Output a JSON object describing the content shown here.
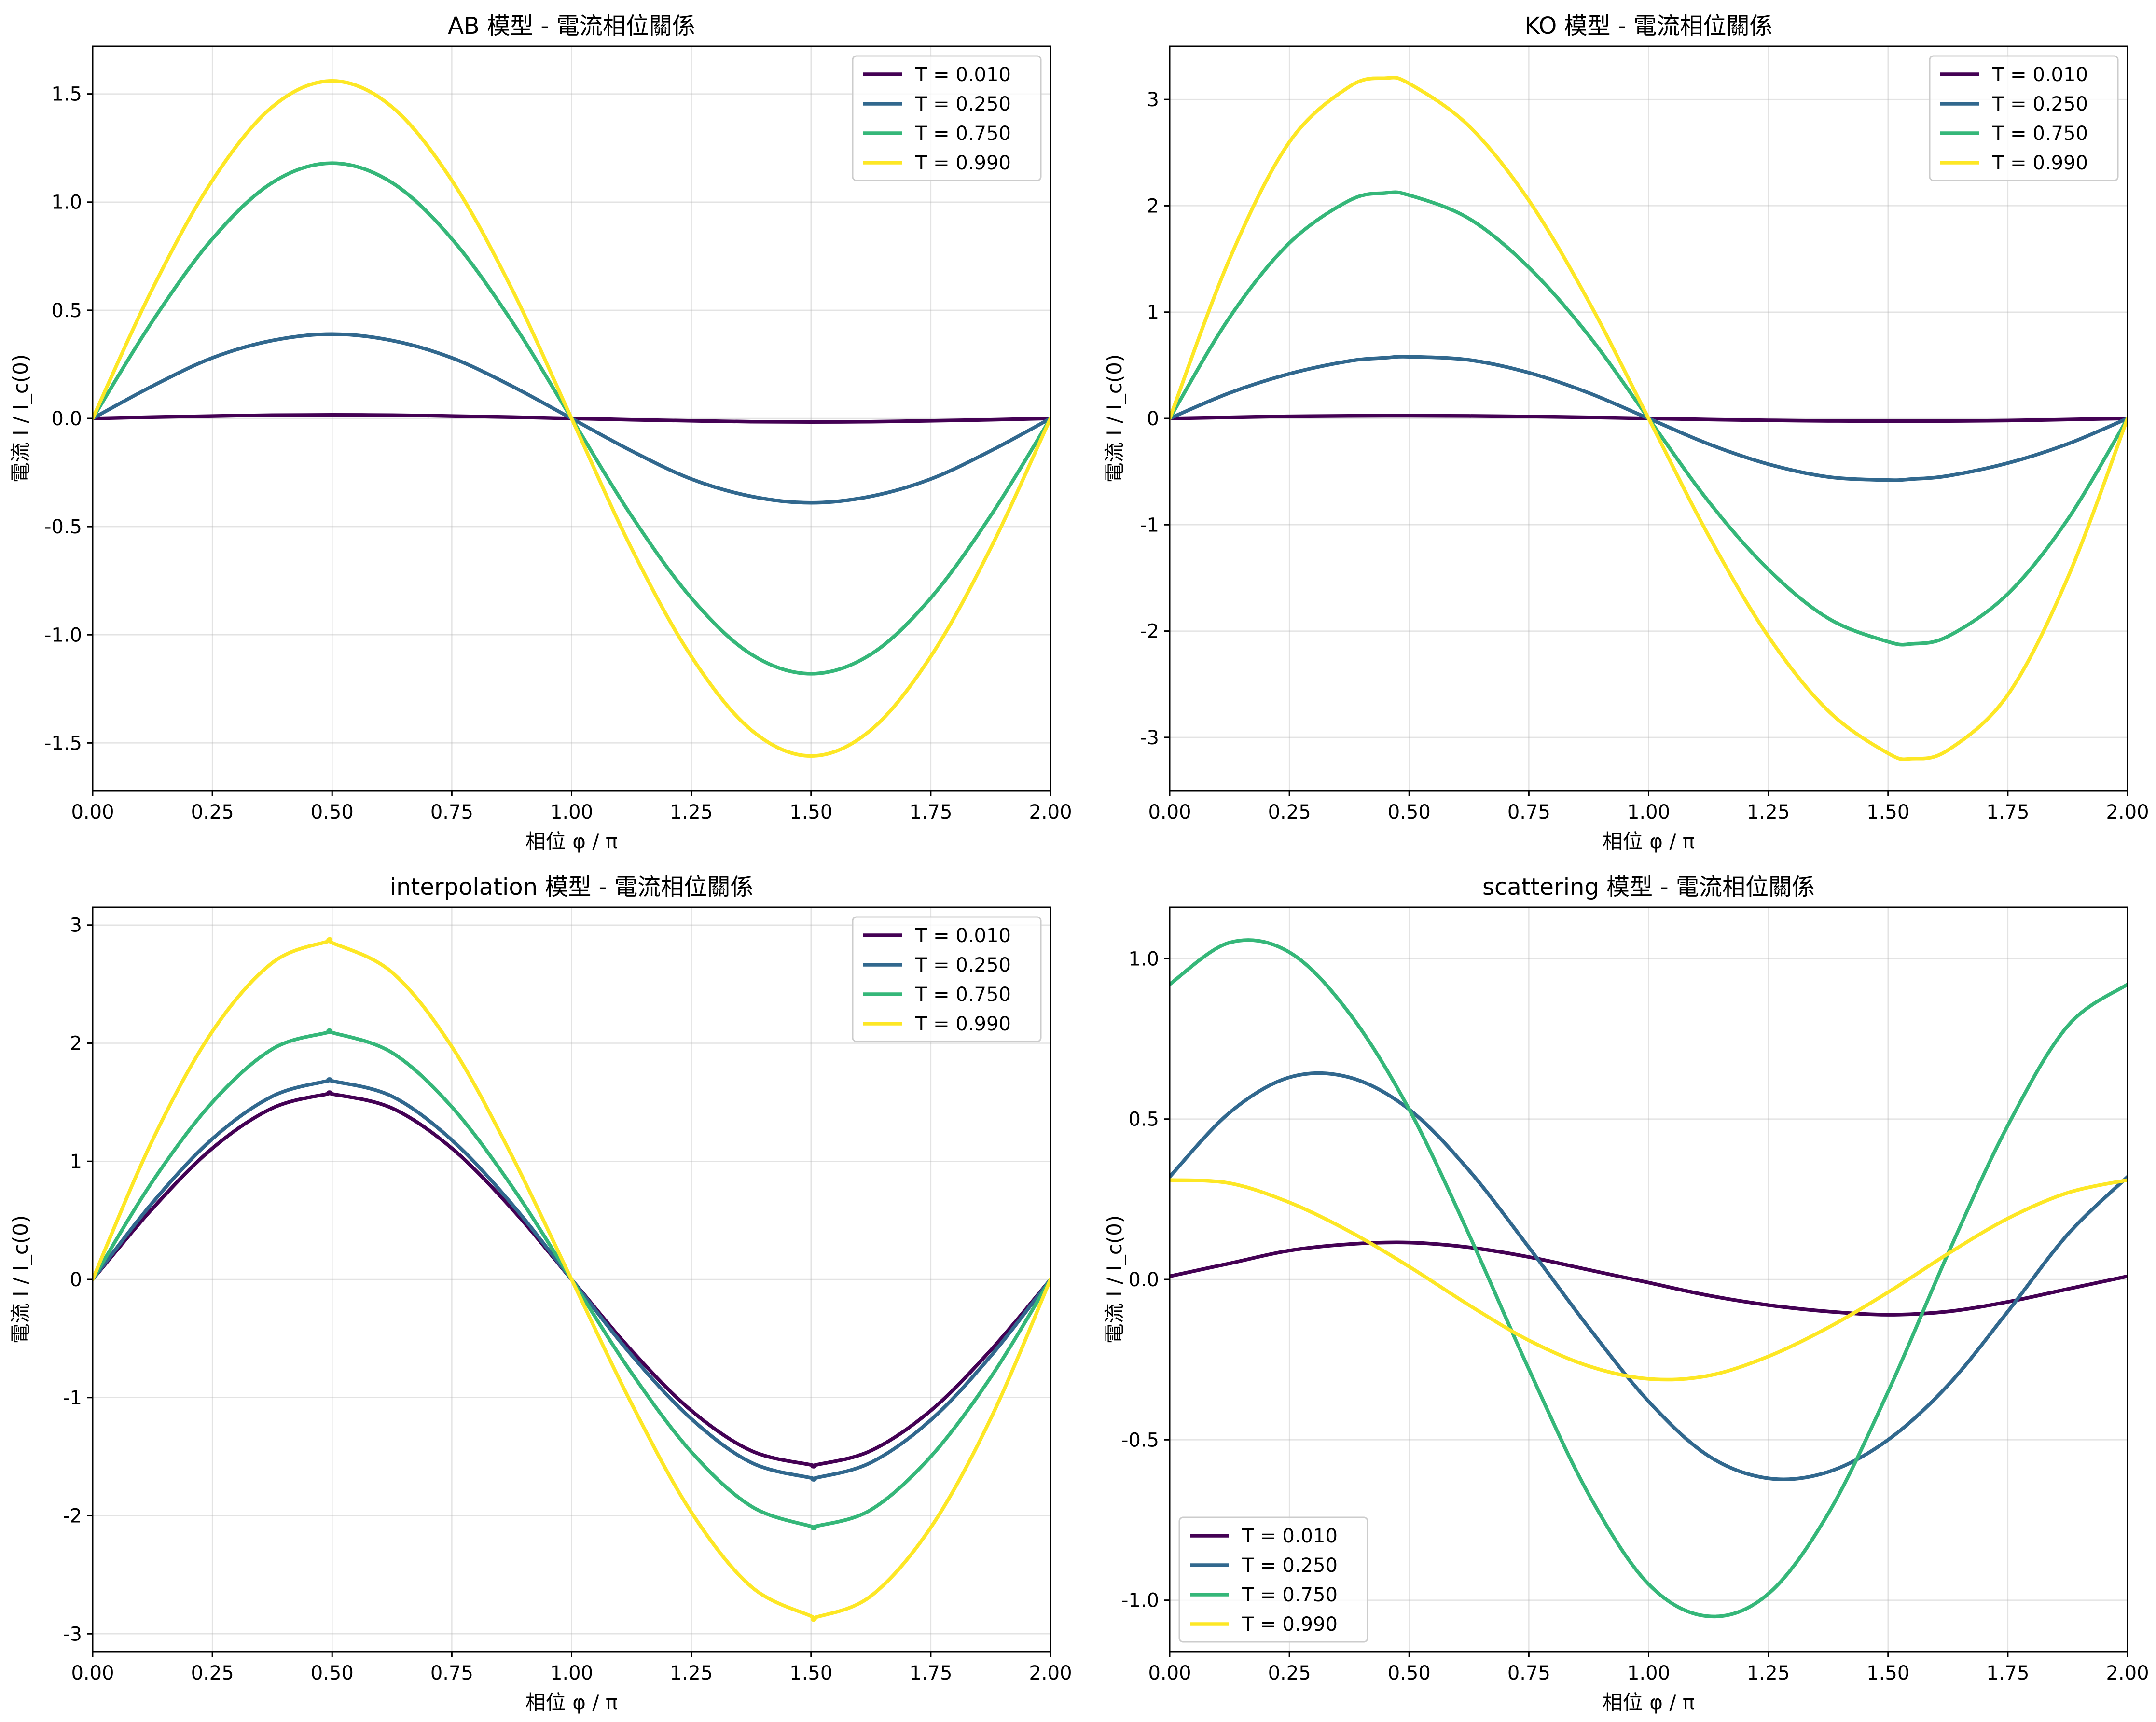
{
  "chart_data": [
    {
      "type": "line",
      "title": "AB 模型 - 電流相位關係",
      "xlabel": "相位 φ / π",
      "ylabel": "電流 I / I_c(0)",
      "xlim": [
        0,
        2
      ],
      "ylim": [
        -1.72,
        1.72
      ],
      "xticks": [
        0,
        0.25,
        0.5,
        0.75,
        1.0,
        1.25,
        1.5,
        1.75,
        2.0
      ],
      "xtick_labels": [
        "0.00",
        "0.25",
        "0.50",
        "0.75",
        "1.00",
        "1.25",
        "1.50",
        "1.75",
        "2.00"
      ],
      "yticks": [
        -1.5,
        -1.0,
        -0.5,
        0.0,
        0.5,
        1.0,
        1.5
      ],
      "ytick_labels": [
        "-1.5",
        "-1.0",
        "-0.5",
        "0.0",
        "0.5",
        "1.0",
        "1.5"
      ],
      "grid": true,
      "legend_position": "top-right",
      "x": [
        0,
        0.125,
        0.25,
        0.375,
        0.5,
        0.625,
        0.75,
        0.875,
        1.0,
        1.125,
        1.25,
        1.375,
        1.5,
        1.625,
        1.75,
        1.875,
        2.0
      ],
      "series": [
        {
          "name": "T = 0.010",
          "color": "#440154",
          "values": [
            0,
            0.006,
            0.011,
            0.015,
            0.016,
            0.015,
            0.011,
            0.006,
            0,
            -0.006,
            -0.011,
            -0.015,
            -0.016,
            -0.015,
            -0.011,
            -0.006,
            0
          ]
        },
        {
          "name": "T = 0.250",
          "color": "#31688e",
          "values": [
            0,
            0.15,
            0.28,
            0.36,
            0.39,
            0.36,
            0.28,
            0.15,
            0,
            -0.15,
            -0.28,
            -0.36,
            -0.39,
            -0.36,
            -0.28,
            -0.15,
            0
          ]
        },
        {
          "name": "T = 0.750",
          "color": "#35b779",
          "values": [
            0,
            0.45,
            0.83,
            1.09,
            1.18,
            1.09,
            0.83,
            0.45,
            0,
            -0.45,
            -0.83,
            -1.09,
            -1.18,
            -1.09,
            -0.83,
            -0.45,
            0
          ]
        },
        {
          "name": "T = 0.990",
          "color": "#fde725",
          "values": [
            0,
            0.6,
            1.1,
            1.44,
            1.56,
            1.44,
            1.1,
            0.6,
            0,
            -0.6,
            -1.1,
            -1.44,
            -1.56,
            -1.44,
            -1.1,
            -0.6,
            0
          ]
        }
      ]
    },
    {
      "type": "line",
      "title": "KO 模型 - 電流相位關係",
      "xlabel": "相位 φ / π",
      "ylabel": "電流 I / I_c(0)",
      "xlim": [
        0,
        2
      ],
      "ylim": [
        -3.5,
        3.5
      ],
      "xticks": [
        0,
        0.25,
        0.5,
        0.75,
        1.0,
        1.25,
        1.5,
        1.75,
        2.0
      ],
      "xtick_labels": [
        "0.00",
        "0.25",
        "0.50",
        "0.75",
        "1.00",
        "1.25",
        "1.50",
        "1.75",
        "2.00"
      ],
      "yticks": [
        -3,
        -2,
        -1,
        0,
        1,
        2,
        3
      ],
      "ytick_labels": [
        "-3",
        "-2",
        "-1",
        "0",
        "1",
        "2",
        "3"
      ],
      "grid": true,
      "legend_position": "top-right",
      "x": [
        0,
        0.125,
        0.25,
        0.375,
        0.45,
        0.5,
        0.625,
        0.75,
        0.875,
        1.0,
        1.125,
        1.25,
        1.375,
        1.5,
        1.55,
        1.625,
        1.75,
        1.875,
        2.0
      ],
      "series": [
        {
          "name": "T = 0.010",
          "color": "#440154",
          "values": [
            0,
            0.01,
            0.02,
            0.024,
            0.025,
            0.025,
            0.023,
            0.018,
            0.01,
            0,
            -0.01,
            -0.018,
            -0.023,
            -0.025,
            -0.025,
            -0.024,
            -0.02,
            -0.01,
            0
          ]
        },
        {
          "name": "T = 0.250",
          "color": "#31688e",
          "values": [
            0,
            0.24,
            0.42,
            0.54,
            0.57,
            0.58,
            0.55,
            0.43,
            0.24,
            0,
            -0.24,
            -0.43,
            -0.55,
            -0.58,
            -0.57,
            -0.54,
            -0.42,
            -0.24,
            0
          ]
        },
        {
          "name": "T = 0.750",
          "color": "#35b779",
          "values": [
            0,
            0.95,
            1.65,
            2.05,
            2.12,
            2.1,
            1.88,
            1.42,
            0.78,
            0,
            -0.78,
            -1.42,
            -1.88,
            -2.1,
            -2.12,
            -2.05,
            -1.65,
            -0.95,
            0
          ]
        },
        {
          "name": "T = 0.990",
          "color": "#fde725",
          "values": [
            0,
            1.5,
            2.6,
            3.12,
            3.2,
            3.15,
            2.75,
            2.05,
            1.1,
            0,
            -1.1,
            -2.05,
            -2.75,
            -3.15,
            -3.2,
            -3.12,
            -2.6,
            -1.5,
            0
          ]
        }
      ]
    },
    {
      "type": "line",
      "title": "interpolation 模型 - 電流相位關係",
      "xlabel": "相位 φ / π",
      "ylabel": "電流 I / I_c(0)",
      "xlim": [
        0,
        2
      ],
      "ylim": [
        -3.15,
        3.15
      ],
      "xticks": [
        0,
        0.25,
        0.5,
        0.75,
        1.0,
        1.25,
        1.5,
        1.75,
        2.0
      ],
      "xtick_labels": [
        "0.00",
        "0.25",
        "0.50",
        "0.75",
        "1.00",
        "1.25",
        "1.50",
        "1.75",
        "2.00"
      ],
      "yticks": [
        -3,
        -2,
        -1,
        0,
        1,
        2,
        3
      ],
      "ytick_labels": [
        "-3",
        "-2",
        "-1",
        "0",
        "1",
        "2",
        "3"
      ],
      "grid": true,
      "legend_position": "top-right",
      "x": [
        0,
        0.125,
        0.25,
        0.375,
        0.49,
        0.5,
        0.625,
        0.75,
        0.875,
        1.0,
        1.125,
        1.25,
        1.375,
        1.5,
        1.51,
        1.625,
        1.75,
        1.875,
        2.0
      ],
      "series": [
        {
          "name": "T = 0.010",
          "color": "#440154",
          "values": [
            0,
            0.6,
            1.11,
            1.45,
            1.57,
            1.57,
            1.45,
            1.11,
            0.6,
            0,
            -0.6,
            -1.11,
            -1.45,
            -1.57,
            -1.57,
            -1.45,
            -1.11,
            -0.6,
            0
          ]
        },
        {
          "name": "T = 0.250",
          "color": "#31688e",
          "values": [
            0,
            0.65,
            1.19,
            1.55,
            1.68,
            1.68,
            1.55,
            1.18,
            0.64,
            0,
            -0.64,
            -1.18,
            -1.55,
            -1.68,
            -1.68,
            -1.55,
            -1.19,
            -0.65,
            0
          ]
        },
        {
          "name": "T = 0.750",
          "color": "#35b779",
          "values": [
            0,
            0.83,
            1.5,
            1.95,
            2.09,
            2.09,
            1.92,
            1.46,
            0.79,
            0,
            -0.79,
            -1.46,
            -1.92,
            -2.09,
            -2.09,
            -1.95,
            -1.5,
            -0.83,
            0
          ]
        },
        {
          "name": "T = 0.990",
          "color": "#fde725",
          "values": [
            0,
            1.18,
            2.1,
            2.68,
            2.86,
            2.85,
            2.6,
            1.97,
            1.05,
            0,
            -1.05,
            -1.97,
            -2.6,
            -2.85,
            -2.86,
            -2.68,
            -2.1,
            -1.18,
            0
          ]
        }
      ]
    },
    {
      "type": "line",
      "title": "scattering 模型 - 電流相位關係",
      "xlabel": "相位 φ / π",
      "ylabel": "電流 I / I_c(0)",
      "xlim": [
        0,
        2
      ],
      "ylim": [
        -1.16,
        1.16
      ],
      "xticks": [
        0,
        0.25,
        0.5,
        0.75,
        1.0,
        1.25,
        1.5,
        1.75,
        2.0
      ],
      "xtick_labels": [
        "0.00",
        "0.25",
        "0.50",
        "0.75",
        "1.00",
        "1.25",
        "1.50",
        "1.75",
        "2.00"
      ],
      "yticks": [
        -1.0,
        -0.5,
        0.0,
        0.5,
        1.0
      ],
      "ytick_labels": [
        "-1.0",
        "-0.5",
        "0.0",
        "0.5",
        "1.0"
      ],
      "grid": true,
      "legend_position": "bottom-left",
      "x": [
        0,
        0.125,
        0.25,
        0.375,
        0.5,
        0.625,
        0.75,
        0.875,
        1.0,
        1.125,
        1.25,
        1.375,
        1.5,
        1.625,
        1.75,
        1.875,
        2.0
      ],
      "series": [
        {
          "name": "T = 0.010",
          "color": "#440154",
          "values": [
            0.01,
            0.05,
            0.09,
            0.11,
            0.115,
            0.1,
            0.07,
            0.03,
            -0.01,
            -0.05,
            -0.08,
            -0.1,
            -0.11,
            -0.1,
            -0.07,
            -0.03,
            0.01
          ]
        },
        {
          "name": "T = 0.250",
          "color": "#31688e",
          "values": [
            0.32,
            0.52,
            0.63,
            0.63,
            0.53,
            0.34,
            0.1,
            -0.15,
            -0.38,
            -0.55,
            -0.62,
            -0.6,
            -0.5,
            -0.33,
            -0.1,
            0.14,
            0.32
          ]
        },
        {
          "name": "T = 0.750",
          "color": "#35b779",
          "values": [
            0.92,
            1.05,
            1.02,
            0.83,
            0.53,
            0.14,
            -0.28,
            -0.67,
            -0.95,
            -1.05,
            -0.98,
            -0.73,
            -0.35,
            0.08,
            0.48,
            0.79,
            0.92
          ]
        },
        {
          "name": "T = 0.990",
          "color": "#fde725",
          "values": [
            0.31,
            0.3,
            0.24,
            0.15,
            0.04,
            -0.08,
            -0.19,
            -0.27,
            -0.31,
            -0.3,
            -0.24,
            -0.15,
            -0.04,
            0.08,
            0.19,
            0.27,
            0.31
          ]
        }
      ]
    }
  ]
}
